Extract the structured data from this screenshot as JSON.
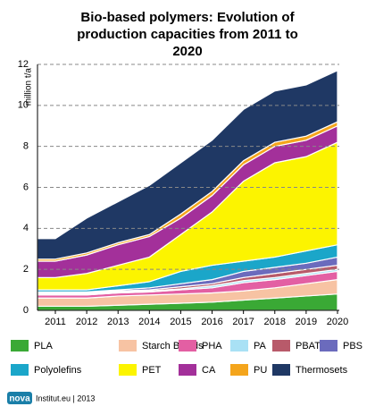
{
  "chart_data": {
    "type": "stacked-area",
    "title": "Bio-based polymers: Evolution of production capacities from 2011 to 2020",
    "y_label": "million t/a",
    "categories": [
      "2011",
      "2012",
      "2013",
      "2014",
      "2015",
      "2016",
      "2017",
      "2018",
      "2019",
      "2020"
    ],
    "ylim": [
      0,
      12
    ],
    "yticks": [
      0,
      2,
      4,
      6,
      8,
      10,
      12
    ],
    "grid": true,
    "series": [
      {
        "name": "PLA",
        "color": "#3aa935",
        "values": [
          0.2,
          0.2,
          0.25,
          0.3,
          0.35,
          0.4,
          0.5,
          0.6,
          0.7,
          0.8
        ]
      },
      {
        "name": "Starch Blends",
        "color": "#f7c3a3",
        "values": [
          0.4,
          0.4,
          0.45,
          0.45,
          0.45,
          0.45,
          0.45,
          0.5,
          0.6,
          0.7
        ]
      },
      {
        "name": "PHA",
        "color": "#e35fa3",
        "values": [
          0.15,
          0.15,
          0.15,
          0.15,
          0.2,
          0.25,
          0.4,
          0.4,
          0.4,
          0.4
        ]
      },
      {
        "name": "PA",
        "color": "#a9e1f5",
        "values": [
          0.05,
          0.05,
          0.05,
          0.05,
          0.05,
          0.1,
          0.1,
          0.1,
          0.1,
          0.1
        ]
      },
      {
        "name": "PBAT",
        "color": "#b85a6a",
        "values": [
          0.05,
          0.05,
          0.05,
          0.05,
          0.1,
          0.1,
          0.15,
          0.2,
          0.2,
          0.2
        ]
      },
      {
        "name": "PBS",
        "color": "#6b6bbd",
        "values": [
          0.05,
          0.05,
          0.05,
          0.1,
          0.15,
          0.2,
          0.3,
          0.3,
          0.3,
          0.4
        ]
      },
      {
        "name": "Polyolefins",
        "color": "#1ba6c9",
        "values": [
          0.1,
          0.1,
          0.2,
          0.3,
          0.6,
          0.7,
          0.5,
          0.5,
          0.6,
          0.6
        ]
      },
      {
        "name": "PET",
        "color": "#fcf400",
        "values": [
          0.6,
          0.8,
          1.0,
          1.2,
          1.8,
          2.6,
          3.9,
          4.6,
          4.6,
          5.0
        ]
      },
      {
        "name": "CA",
        "color": "#a3309a",
        "values": [
          0.8,
          0.9,
          1.0,
          1.0,
          0.8,
          0.8,
          0.8,
          0.8,
          0.8,
          0.8
        ]
      },
      {
        "name": "PU",
        "color": "#f4a51c",
        "values": [
          0.1,
          0.1,
          0.1,
          0.1,
          0.2,
          0.2,
          0.2,
          0.2,
          0.2,
          0.2
        ]
      },
      {
        "name": "Thermosets",
        "color": "#1f3864",
        "values": [
          1.0,
          1.7,
          2.0,
          2.4,
          2.5,
          2.5,
          2.5,
          2.5,
          2.5,
          2.5
        ]
      }
    ]
  },
  "footer": {
    "logo": "nova",
    "text": "Institut.eu | 2013"
  }
}
